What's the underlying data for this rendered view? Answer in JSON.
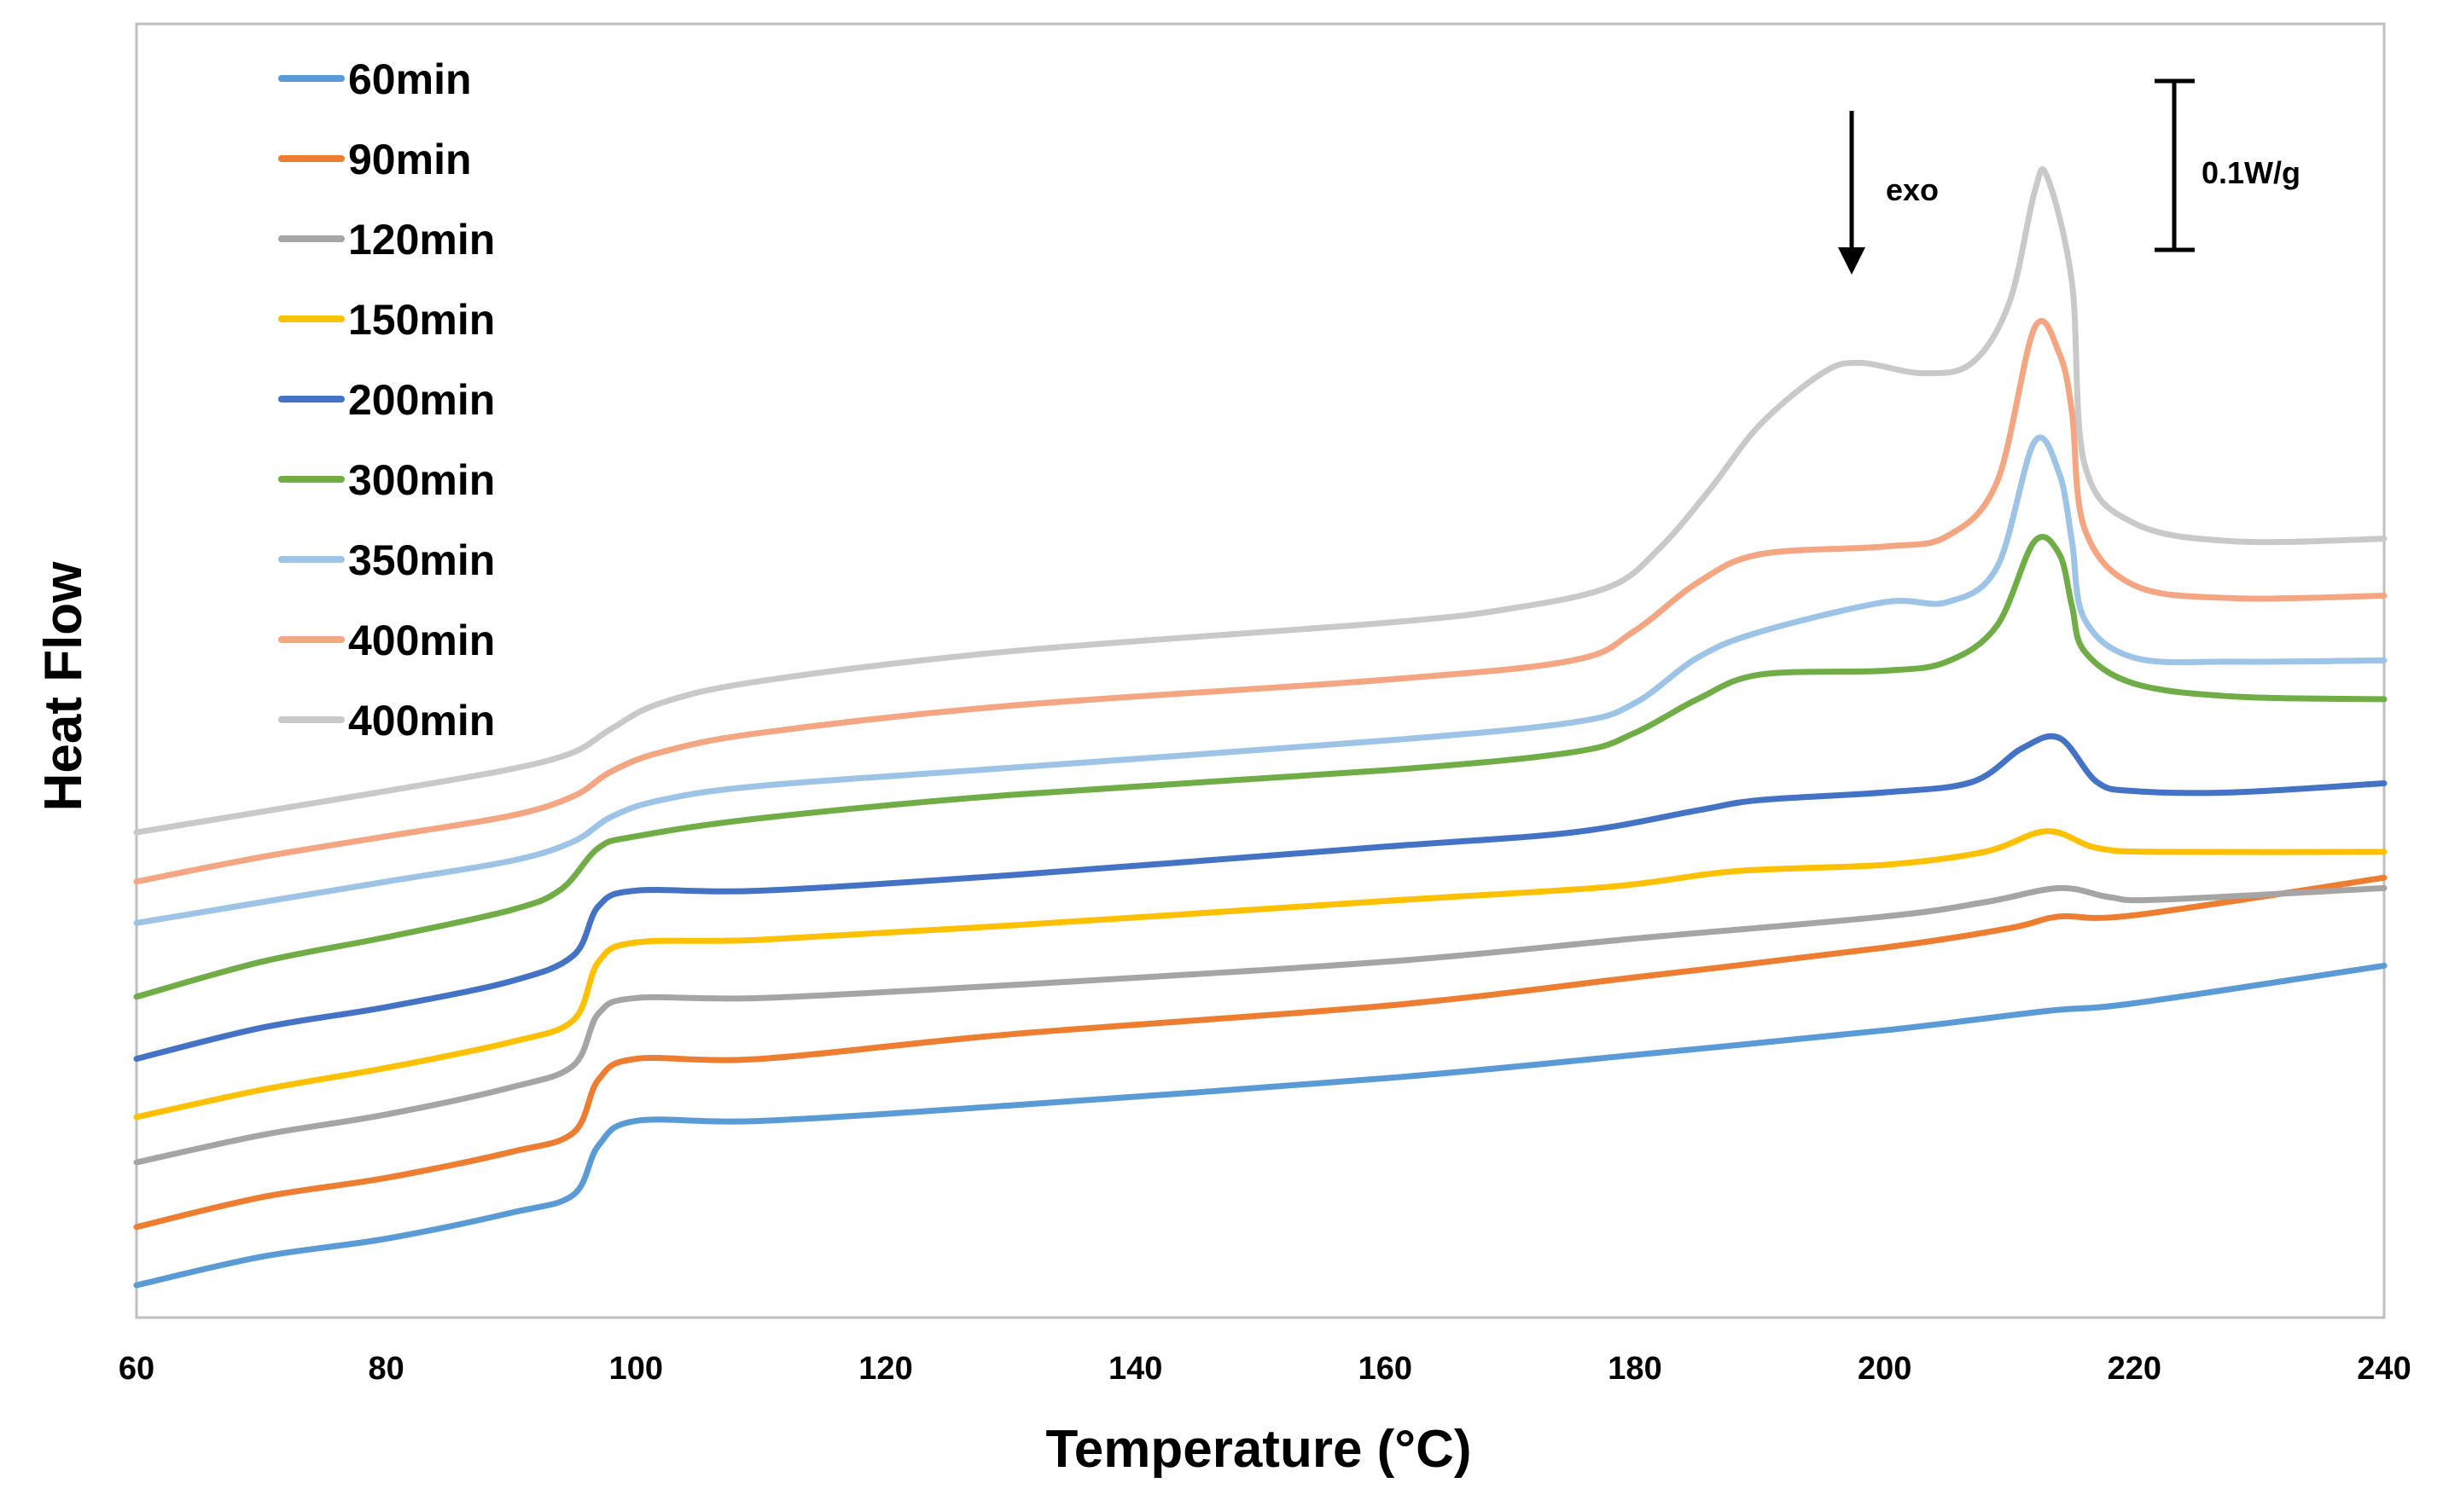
{
  "chart_data": {
    "type": "line",
    "title": "",
    "xlabel": "Temperature (°C)",
    "ylabel": "Heat Flow",
    "xlim": [
      60,
      240
    ],
    "ylim": [
      0,
      1
    ],
    "xticks": [
      "60",
      "80",
      "100",
      "120",
      "140",
      "160",
      "180",
      "200",
      "220",
      "240"
    ],
    "xtick_values": [
      60,
      80,
      100,
      120,
      140,
      160,
      180,
      200,
      220,
      240
    ],
    "grid": false,
    "legend_position": "top-left",
    "annotations": {
      "exo_label": "exo",
      "scale_label": "0.1W/g"
    },
    "series": [
      {
        "name": "60min",
        "color": "#5b9bd5",
        "points": [
          [
            60,
            0.025
          ],
          [
            70,
            0.047
          ],
          [
            80,
            0.061
          ],
          [
            90,
            0.081
          ],
          [
            95,
            0.095
          ],
          [
            97,
            0.133
          ],
          [
            100,
            0.152
          ],
          [
            110,
            0.152
          ],
          [
            130,
            0.164
          ],
          [
            160,
            0.185
          ],
          [
            180,
            0.203
          ],
          [
            200,
            0.222
          ],
          [
            213,
            0.237
          ],
          [
            220,
            0.243
          ],
          [
            240,
            0.272
          ]
        ]
      },
      {
        "name": "90min",
        "color": "#ed7d31",
        "points": [
          [
            60,
            0.07
          ],
          [
            70,
            0.093
          ],
          [
            80,
            0.108
          ],
          [
            90,
            0.128
          ],
          [
            95,
            0.143
          ],
          [
            97,
            0.184
          ],
          [
            100,
            0.2
          ],
          [
            110,
            0.2
          ],
          [
            130,
            0.219
          ],
          [
            160,
            0.241
          ],
          [
            180,
            0.263
          ],
          [
            200,
            0.286
          ],
          [
            210,
            0.301
          ],
          [
            214,
            0.31
          ],
          [
            220,
            0.311
          ],
          [
            240,
            0.34
          ]
        ]
      },
      {
        "name": "120min",
        "color": "#a5a5a5",
        "points": [
          [
            60,
            0.12
          ],
          [
            70,
            0.141
          ],
          [
            80,
            0.157
          ],
          [
            90,
            0.178
          ],
          [
            95,
            0.195
          ],
          [
            97,
            0.235
          ],
          [
            100,
            0.247
          ],
          [
            110,
            0.247
          ],
          [
            130,
            0.257
          ],
          [
            160,
            0.275
          ],
          [
            180,
            0.293
          ],
          [
            200,
            0.31
          ],
          [
            208,
            0.321
          ],
          [
            214,
            0.332
          ],
          [
            218,
            0.325
          ],
          [
            222,
            0.323
          ],
          [
            240,
            0.332
          ]
        ]
      },
      {
        "name": "150min",
        "color": "#ffc000",
        "points": [
          [
            60,
            0.155
          ],
          [
            70,
            0.176
          ],
          [
            80,
            0.193
          ],
          [
            90,
            0.213
          ],
          [
            95,
            0.23
          ],
          [
            97,
            0.275
          ],
          [
            100,
            0.29
          ],
          [
            110,
            0.292
          ],
          [
            130,
            0.303
          ],
          [
            160,
            0.322
          ],
          [
            178,
            0.333
          ],
          [
            188,
            0.345
          ],
          [
            200,
            0.35
          ],
          [
            208,
            0.36
          ],
          [
            213,
            0.376
          ],
          [
            217,
            0.363
          ],
          [
            222,
            0.36
          ],
          [
            240,
            0.36
          ]
        ]
      },
      {
        "name": "200min",
        "color": "#4472c4",
        "points": [
          [
            60,
            0.2
          ],
          [
            70,
            0.224
          ],
          [
            80,
            0.24
          ],
          [
            90,
            0.26
          ],
          [
            95,
            0.28
          ],
          [
            97,
            0.318
          ],
          [
            100,
            0.33
          ],
          [
            110,
            0.33
          ],
          [
            130,
            0.342
          ],
          [
            160,
            0.364
          ],
          [
            175,
            0.375
          ],
          [
            185,
            0.392
          ],
          [
            190,
            0.4
          ],
          [
            200,
            0.406
          ],
          [
            207,
            0.414
          ],
          [
            211,
            0.44
          ],
          [
            214,
            0.448
          ],
          [
            217,
            0.414
          ],
          [
            220,
            0.407
          ],
          [
            228,
            0.406
          ],
          [
            240,
            0.413
          ]
        ]
      },
      {
        "name": "300min",
        "color": "#70ad47",
        "points": [
          [
            60,
            0.248
          ],
          [
            70,
            0.275
          ],
          [
            80,
            0.294
          ],
          [
            90,
            0.315
          ],
          [
            94,
            0.331
          ],
          [
            97,
            0.363
          ],
          [
            100,
            0.372
          ],
          [
            110,
            0.386
          ],
          [
            130,
            0.404
          ],
          [
            160,
            0.423
          ],
          [
            175,
            0.437
          ],
          [
            180,
            0.452
          ],
          [
            185,
            0.478
          ],
          [
            190,
            0.497
          ],
          [
            200,
            0.5
          ],
          [
            205,
            0.507
          ],
          [
            209,
            0.535
          ],
          [
            212,
            0.6
          ],
          [
            214,
            0.59
          ],
          [
            215,
            0.55
          ],
          [
            216,
            0.515
          ],
          [
            220,
            0.49
          ],
          [
            228,
            0.48
          ],
          [
            240,
            0.478
          ]
        ]
      },
      {
        "name": "350min",
        "color": "#9dc3e6",
        "points": [
          [
            60,
            0.305
          ],
          [
            70,
            0.321
          ],
          [
            80,
            0.337
          ],
          [
            90,
            0.353
          ],
          [
            95,
            0.368
          ],
          [
            98,
            0.387
          ],
          [
            102,
            0.4
          ],
          [
            110,
            0.411
          ],
          [
            130,
            0.425
          ],
          [
            160,
            0.446
          ],
          [
            175,
            0.46
          ],
          [
            180,
            0.475
          ],
          [
            185,
            0.51
          ],
          [
            190,
            0.53
          ],
          [
            200,
            0.553
          ],
          [
            205,
            0.553
          ],
          [
            209,
            0.58
          ],
          [
            212,
            0.677
          ],
          [
            214,
            0.652
          ],
          [
            215,
            0.6
          ],
          [
            216,
            0.54
          ],
          [
            220,
            0.51
          ],
          [
            228,
            0.507
          ],
          [
            240,
            0.508
          ]
        ]
      },
      {
        "name": "400min",
        "color": "#f4a582",
        "points": [
          [
            60,
            0.337
          ],
          [
            70,
            0.356
          ],
          [
            80,
            0.372
          ],
          [
            90,
            0.388
          ],
          [
            95,
            0.403
          ],
          [
            98,
            0.422
          ],
          [
            102,
            0.437
          ],
          [
            110,
            0.452
          ],
          [
            130,
            0.473
          ],
          [
            160,
            0.493
          ],
          [
            175,
            0.508
          ],
          [
            180,
            0.531
          ],
          [
            185,
            0.568
          ],
          [
            190,
            0.59
          ],
          [
            200,
            0.596
          ],
          [
            205,
            0.604
          ],
          [
            209,
            0.646
          ],
          [
            212,
            0.765
          ],
          [
            214,
            0.745
          ],
          [
            215,
            0.7
          ],
          [
            216,
            0.61
          ],
          [
            220,
            0.566
          ],
          [
            228,
            0.556
          ],
          [
            240,
            0.558
          ]
        ]
      },
      {
        "name": "400min",
        "color": "#c9c9c9",
        "points": [
          [
            60,
            0.375
          ],
          [
            70,
            0.391
          ],
          [
            80,
            0.407
          ],
          [
            90,
            0.424
          ],
          [
            95,
            0.437
          ],
          [
            98,
            0.455
          ],
          [
            102,
            0.475
          ],
          [
            110,
            0.492
          ],
          [
            130,
            0.515
          ],
          [
            160,
            0.537
          ],
          [
            170,
            0.548
          ],
          [
            178,
            0.565
          ],
          [
            182,
            0.595
          ],
          [
            186,
            0.64
          ],
          [
            190,
            0.69
          ],
          [
            195,
            0.73
          ],
          [
            198,
            0.738
          ],
          [
            203,
            0.73
          ],
          [
            207,
            0.738
          ],
          [
            210,
            0.785
          ],
          [
            212,
            0.87
          ],
          [
            213,
            0.882
          ],
          [
            215,
            0.8
          ],
          [
            216,
            0.66
          ],
          [
            220,
            0.614
          ],
          [
            228,
            0.6
          ],
          [
            240,
            0.602
          ]
        ]
      }
    ]
  }
}
